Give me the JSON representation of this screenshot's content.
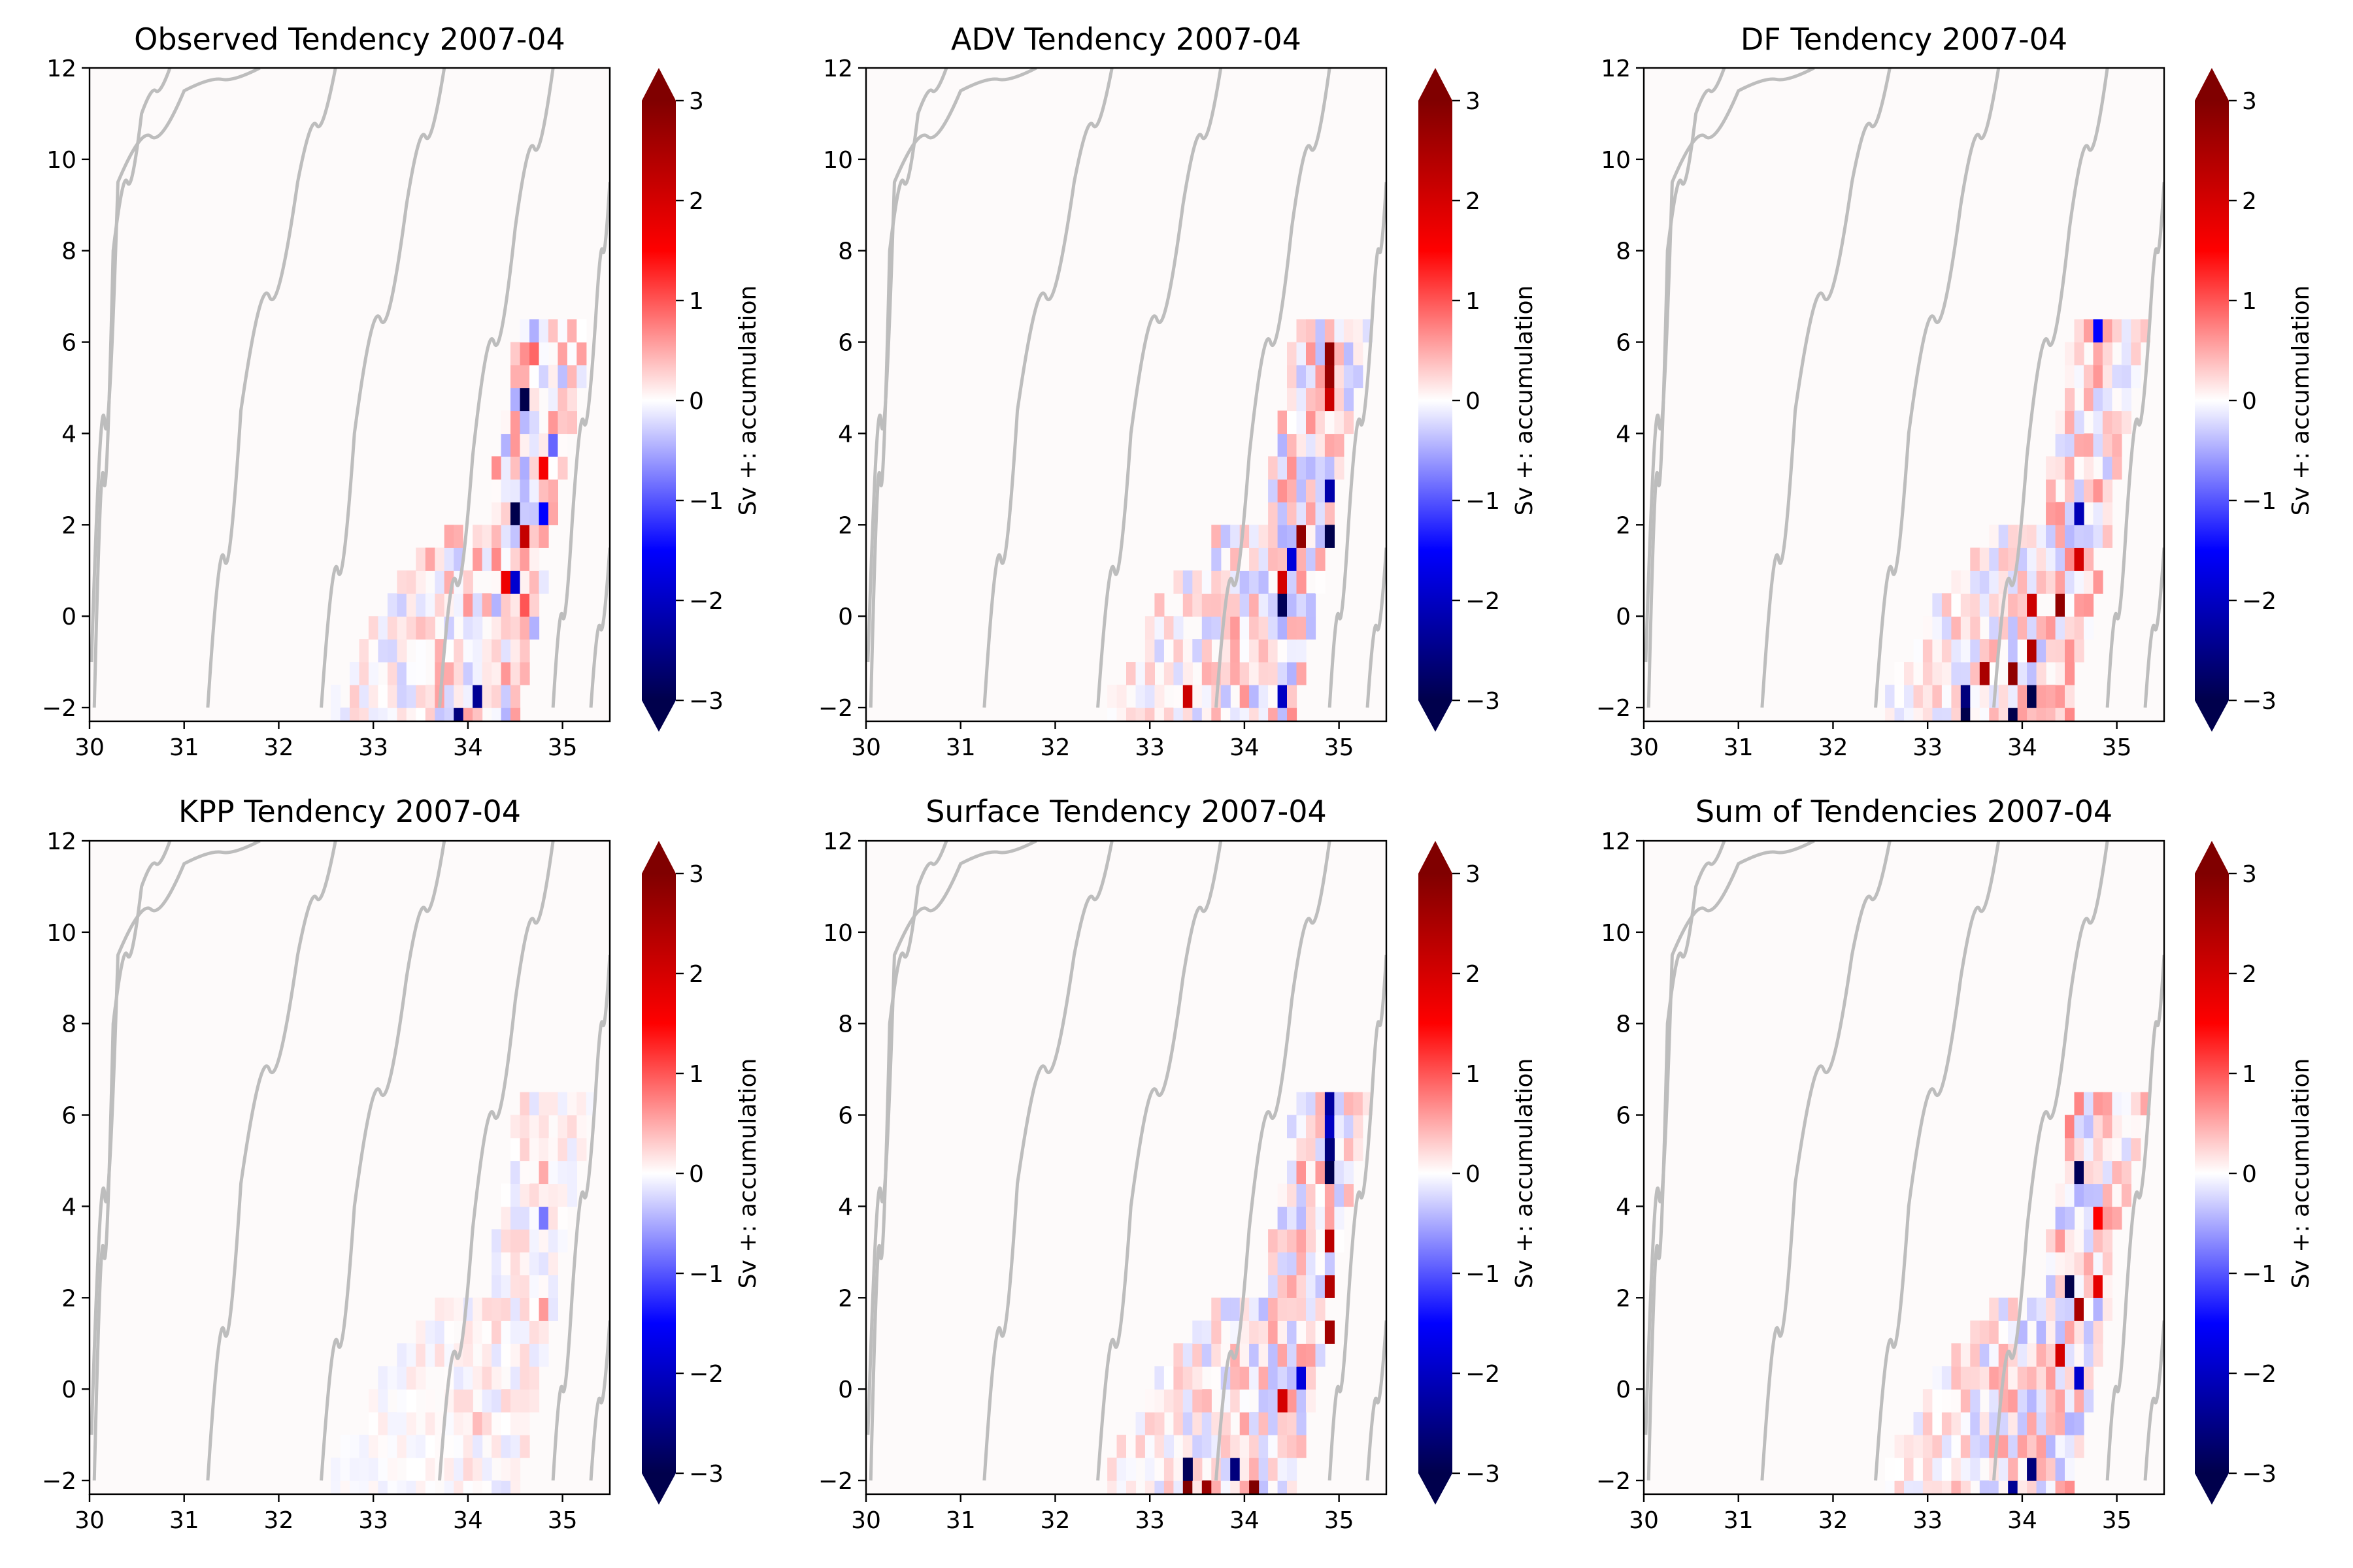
{
  "figure": {
    "type": "multi-panel heatmap (salinity-temperature tendency)"
  },
  "chart_data": [
    {
      "type": "heatmap",
      "title": "Observed Tendency 2007-04",
      "xlim": [
        30,
        35.5
      ],
      "ylim": [
        -2.3,
        12
      ],
      "xticks": [
        30,
        31,
        32,
        33,
        34,
        35
      ],
      "yticks": [
        -2,
        0,
        2,
        4,
        6,
        8,
        10,
        12
      ],
      "colorbar": {
        "label": "Sv +: accumulation",
        "range": [
          -3,
          3
        ],
        "ticks": [
          -3,
          -2,
          -1,
          0,
          1,
          2,
          3
        ],
        "extend": "both",
        "cmap": "seismic"
      },
      "seed": 11,
      "amp": 0.9,
      "cells": [
        {
          "s": 34.6,
          "t": 4.75,
          "v": -3.0
        },
        {
          "s": 34.5,
          "t": 2.25,
          "v": -3.0
        },
        {
          "s": 34.6,
          "t": 1.75,
          "v": 2.2
        },
        {
          "s": 34.4,
          "t": 0.75,
          "v": 1.7
        },
        {
          "s": 34.6,
          "t": 0.25,
          "v": 1.0
        },
        {
          "s": 34.1,
          "t": -1.75,
          "v": -2.4
        },
        {
          "s": 33.9,
          "t": -2.25,
          "v": -2.6
        },
        {
          "s": 34.5,
          "t": 0.75,
          "v": -1.9
        },
        {
          "s": 34.8,
          "t": 3.25,
          "v": 1.6
        },
        {
          "s": 34.8,
          "t": 2.25,
          "v": -1.5
        },
        {
          "s": 34.9,
          "t": 3.75,
          "v": -0.9
        },
        {
          "s": 34.7,
          "t": 5.75,
          "v": 0.9
        }
      ]
    },
    {
      "type": "heatmap",
      "title": "ADV Tendency 2007-04",
      "xlim": [
        30,
        35.5
      ],
      "ylim": [
        -2.3,
        12
      ],
      "xticks": [
        30,
        31,
        32,
        33,
        34,
        35
      ],
      "yticks": [
        -2,
        0,
        2,
        4,
        6,
        8,
        10,
        12
      ],
      "colorbar": {
        "label": "Sv +: accumulation",
        "range": [
          -3,
          3
        ],
        "ticks": [
          -3,
          -2,
          -1,
          0,
          1,
          2,
          3
        ],
        "extend": "both",
        "cmap": "seismic"
      },
      "seed": 23,
      "amp": 0.9,
      "cells": [
        {
          "s": 34.9,
          "t": 5.75,
          "v": 2.8
        },
        {
          "s": 34.9,
          "t": 5.25,
          "v": 2.7
        },
        {
          "s": 34.9,
          "t": 4.75,
          "v": 2.1
        },
        {
          "s": 34.9,
          "t": 1.75,
          "v": -3.0
        },
        {
          "s": 34.9,
          "t": 2.75,
          "v": -2.2
        },
        {
          "s": 34.6,
          "t": 1.75,
          "v": 2.8
        },
        {
          "s": 34.4,
          "t": 0.75,
          "v": 2.0
        },
        {
          "s": 34.4,
          "t": 0.25,
          "v": -2.9
        },
        {
          "s": 33.4,
          "t": -1.75,
          "v": 2.1
        },
        {
          "s": 34.4,
          "t": -1.75,
          "v": -2.0
        },
        {
          "s": 34.5,
          "t": 1.25,
          "v": -1.8
        }
      ]
    },
    {
      "type": "heatmap",
      "title": "DF Tendency 2007-04",
      "xlim": [
        30,
        35.5
      ],
      "ylim": [
        -2.3,
        12
      ],
      "xticks": [
        30,
        31,
        32,
        33,
        34,
        35
      ],
      "yticks": [
        -2,
        0,
        2,
        4,
        6,
        8,
        10,
        12
      ],
      "colorbar": {
        "label": "Sv +: accumulation",
        "range": [
          -3,
          3
        ],
        "ticks": [
          -3,
          -2,
          -1,
          0,
          1,
          2,
          3
        ],
        "extend": "both",
        "cmap": "seismic"
      },
      "seed": 37,
      "amp": 0.85,
      "cells": [
        {
          "s": 34.6,
          "t": 2.25,
          "v": -2.1
        },
        {
          "s": 34.6,
          "t": 1.25,
          "v": 2.0
        },
        {
          "s": 34.4,
          "t": 0.25,
          "v": 2.8
        },
        {
          "s": 34.1,
          "t": -0.75,
          "v": 2.4
        },
        {
          "s": 33.9,
          "t": -1.25,
          "v": 2.8
        },
        {
          "s": 33.6,
          "t": -1.25,
          "v": 2.5
        },
        {
          "s": 33.4,
          "t": -1.75,
          "v": -2.6
        },
        {
          "s": 33.4,
          "t": -2.25,
          "v": -3.0
        },
        {
          "s": 33.9,
          "t": -2.25,
          "v": -3.0
        },
        {
          "s": 34.1,
          "t": -1.75,
          "v": -3.0
        },
        {
          "s": 34.8,
          "t": 6.25,
          "v": -1.5
        },
        {
          "s": 34.1,
          "t": 0.25,
          "v": 2.1
        }
      ]
    },
    {
      "type": "heatmap",
      "title": "KPP Tendency 2007-04",
      "xlim": [
        30,
        35.5
      ],
      "ylim": [
        -2.3,
        12
      ],
      "xticks": [
        30,
        31,
        32,
        33,
        34,
        35
      ],
      "yticks": [
        -2,
        0,
        2,
        4,
        6,
        8,
        10,
        12
      ],
      "colorbar": {
        "label": "Sv +: accumulation",
        "range": [
          -3,
          3
        ],
        "ticks": [
          -3,
          -2,
          -1,
          0,
          1,
          2,
          3
        ],
        "extend": "both",
        "cmap": "seismic"
      },
      "seed": 53,
      "amp": 0.35,
      "cells": [
        {
          "s": 34.8,
          "t": 3.75,
          "v": -0.8
        },
        {
          "s": 34.8,
          "t": 4.75,
          "v": 0.5
        },
        {
          "s": 34.8,
          "t": 1.75,
          "v": 0.6
        },
        {
          "s": 34.1,
          "t": -0.75,
          "v": 0.4
        }
      ]
    },
    {
      "type": "heatmap",
      "title": "Surface Tendency 2007-04",
      "xlim": [
        30,
        35.5
      ],
      "ylim": [
        -2.3,
        12
      ],
      "xticks": [
        30,
        31,
        32,
        33,
        34,
        35
      ],
      "yticks": [
        -2,
        0,
        2,
        4,
        6,
        8,
        10,
        12
      ],
      "colorbar": {
        "label": "Sv +: accumulation",
        "range": [
          -3,
          3
        ],
        "ticks": [
          -3,
          -2,
          -1,
          0,
          1,
          2,
          3
        ],
        "extend": "both",
        "cmap": "seismic"
      },
      "seed": 71,
      "amp": 0.8,
      "cells": [
        {
          "s": 34.9,
          "t": 6.25,
          "v": -2.3
        },
        {
          "s": 34.9,
          "t": 5.75,
          "v": -2.0
        },
        {
          "s": 34.9,
          "t": 5.25,
          "v": -2.6
        },
        {
          "s": 34.9,
          "t": 4.75,
          "v": -3.0
        },
        {
          "s": 34.9,
          "t": 3.25,
          "v": 2.3
        },
        {
          "s": 34.9,
          "t": 2.25,
          "v": 2.4
        },
        {
          "s": 34.9,
          "t": 1.25,
          "v": 2.6
        },
        {
          "s": 33.4,
          "t": -2.25,
          "v": 3.0
        },
        {
          "s": 33.6,
          "t": -2.25,
          "v": 2.7
        },
        {
          "s": 34.1,
          "t": -2.25,
          "v": 3.0
        },
        {
          "s": 33.4,
          "t": -1.75,
          "v": -2.9
        },
        {
          "s": 33.9,
          "t": -1.75,
          "v": -2.6
        },
        {
          "s": 34.4,
          "t": -0.25,
          "v": 2.0
        },
        {
          "s": 34.6,
          "t": 0.25,
          "v": -1.8
        }
      ]
    },
    {
      "type": "heatmap",
      "title": "Sum of Tendencies 2007-04",
      "xlim": [
        30,
        35.5
      ],
      "ylim": [
        -2.3,
        12
      ],
      "xticks": [
        30,
        31,
        32,
        33,
        34,
        35
      ],
      "yticks": [
        -2,
        0,
        2,
        4,
        6,
        8,
        10,
        12
      ],
      "colorbar": {
        "label": "Sv +: accumulation",
        "range": [
          -3,
          3
        ],
        "ticks": [
          -3,
          -2,
          -1,
          0,
          1,
          2,
          3
        ],
        "extend": "both",
        "cmap": "seismic"
      },
      "seed": 89,
      "amp": 0.9,
      "cells": [
        {
          "s": 34.6,
          "t": 4.75,
          "v": -2.9
        },
        {
          "s": 34.5,
          "t": 2.25,
          "v": -3.0
        },
        {
          "s": 34.6,
          "t": 1.75,
          "v": 2.5
        },
        {
          "s": 34.4,
          "t": 0.75,
          "v": 2.0
        },
        {
          "s": 34.1,
          "t": -1.75,
          "v": -2.6
        },
        {
          "s": 33.9,
          "t": -2.25,
          "v": -2.4
        },
        {
          "s": 34.6,
          "t": 0.25,
          "v": -1.9
        },
        {
          "s": 34.8,
          "t": 3.75,
          "v": 1.5
        },
        {
          "s": 34.8,
          "t": 2.25,
          "v": 1.8
        }
      ]
    }
  ],
  "isopycnals": [
    {
      "s": [
        30.05,
        30.25,
        30.55,
        30.85
      ],
      "t": [
        -2.0,
        8.0,
        11.0,
        12.0
      ]
    },
    {
      "s": [
        30.02,
        30.3,
        31.0,
        31.8
      ],
      "t": [
        -1.0,
        9.5,
        11.5,
        12.0
      ]
    },
    {
      "s": [
        31.25,
        31.6,
        32.2,
        32.6
      ],
      "t": [
        -2.0,
        4.5,
        9.5,
        12.0
      ]
    },
    {
      "s": [
        32.45,
        32.8,
        33.35,
        33.75
      ],
      "t": [
        -2.0,
        4.0,
        9.0,
        12.0
      ]
    },
    {
      "s": [
        33.7,
        34.05,
        34.5,
        34.9
      ],
      "t": [
        -2.0,
        3.5,
        8.5,
        12.0
      ]
    },
    {
      "s": [
        34.9,
        35.1,
        35.35,
        35.5
      ],
      "t": [
        -2.0,
        2.0,
        6.5,
        9.5
      ]
    },
    {
      "s": [
        35.3,
        35.5
      ],
      "t": [
        -2.0,
        1.5
      ]
    }
  ],
  "colors": {
    "background": "#fdfafa",
    "isopycnal": "#bdbdbd"
  }
}
